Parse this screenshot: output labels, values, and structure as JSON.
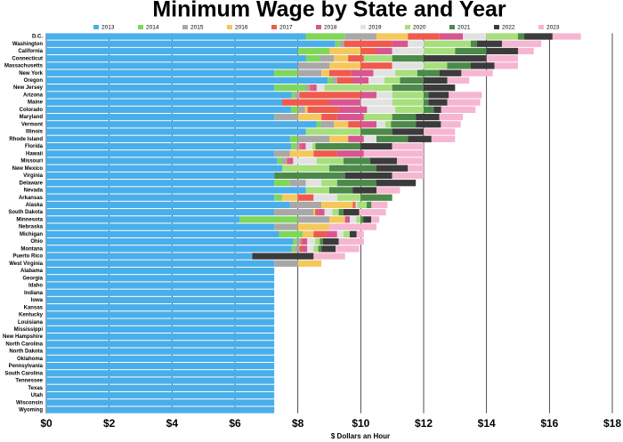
{
  "chart_data": {
    "type": "bar",
    "orientation": "horizontal",
    "stacked": true,
    "title": "Minimum Wage by State and Year",
    "x_label": "$ Dollars an Hour",
    "xlim": [
      0,
      18
    ],
    "xticks": [
      {
        "value": 0,
        "label": "$0"
      },
      {
        "value": 2,
        "label": "$2"
      },
      {
        "value": 4,
        "label": "$4"
      },
      {
        "value": 6,
        "label": "$6"
      },
      {
        "value": 8,
        "label": "$8"
      },
      {
        "value": 10,
        "label": "$10"
      },
      {
        "value": 12,
        "label": "$12"
      },
      {
        "value": 14,
        "label": "$14"
      },
      {
        "value": 16,
        "label": "$16"
      },
      {
        "value": 18,
        "label": "$18"
      }
    ],
    "grid": true,
    "legend": "top",
    "categories": [
      "D.C.",
      "Washington",
      "California",
      "Connecticut",
      "Massachusetts",
      "New York",
      "Oregon",
      "New Jersey",
      "Arizona",
      "Maine",
      "Colorado",
      "Maryland",
      "Vermont",
      "Illinois",
      "Rhode Island",
      "Florida",
      "Hawaii",
      "Missouri",
      "New Mexico",
      "Virginia",
      "Delaware",
      "Nevada",
      "Arkansas",
      "Alaska",
      "South Dakota",
      "Minnesota",
      "Nebraska",
      "Michigan",
      "Ohio",
      "Montana",
      "Puerto Rico",
      "West Virginia",
      "Alabama",
      "Georgia",
      "Idaho",
      "Indiana",
      "Iowa",
      "Kansas",
      "Kentucky",
      "Louisiana",
      "Mississippi",
      "New Hampshire",
      "North Carolina",
      "North Dakota",
      "Oklahoma",
      "Pennsylvania",
      "South Carolina",
      "Tennessee",
      "Texas",
      "Utah",
      "Wisconsin",
      "Wyoming"
    ],
    "series": [
      {
        "name": "2013",
        "color": "#4aaeea",
        "values": [
          8.25,
          9.19,
          8,
          8.25,
          8,
          7.25,
          8.95,
          7.25,
          7.8,
          7.5,
          7.78,
          7.25,
          8.6,
          8.25,
          7.75,
          7.79,
          7.25,
          7.35,
          7.5,
          7.25,
          7.25,
          8.25,
          7.25,
          7.75,
          7.25,
          6.15,
          7.25,
          7.4,
          7.85,
          7.8,
          6.55,
          7.25,
          7.25,
          7.25,
          7.25,
          7.25,
          7.25,
          7.25,
          7.25,
          7.25,
          7.25,
          7.25,
          7.25,
          7.25,
          7.25,
          7.25,
          7.25,
          7.25,
          7.25,
          7.25,
          7.25,
          7.25
        ]
      },
      {
        "name": "2014",
        "color": "#7fd65a",
        "values": [
          1.25,
          0.13,
          1,
          0.45,
          0,
          0.75,
          0.15,
          1,
          0.1,
          0,
          0.22,
          0,
          0.13,
          0,
          0.25,
          0.14,
          0,
          0.15,
          0,
          0,
          0.5,
          0,
          0.25,
          0,
          0,
          1.85,
          0,
          0.75,
          0.1,
          0.1,
          0,
          0,
          0,
          0,
          0,
          0,
          0,
          0,
          0,
          0,
          0,
          0,
          0,
          0,
          0,
          0,
          0,
          0,
          0,
          0,
          0,
          0
        ]
      },
      {
        "name": "2015",
        "color": "#a8a8a8",
        "values": [
          1,
          0.15,
          0,
          0.45,
          1,
          0.75,
          0.15,
          0.13,
          0.15,
          0,
          0.23,
          0.75,
          0.42,
          0,
          1,
          0.12,
          0.5,
          0.15,
          0,
          0,
          0.5,
          0,
          0,
          1,
          1.25,
          1,
          0.75,
          0,
          0.15,
          0.15,
          0,
          0.75,
          0,
          0,
          0,
          0,
          0,
          0,
          0,
          0,
          0,
          0,
          0,
          0,
          0,
          0,
          0,
          0,
          0,
          0,
          0,
          0
        ]
      },
      {
        "name": "2016",
        "color": "#f4c85c",
        "values": [
          1,
          0,
          1,
          0.45,
          1,
          0.25,
          0,
          0,
          0,
          0,
          0.08,
          0.75,
          0.45,
          0,
          0.6,
          0,
          0.75,
          0,
          0,
          0,
          0,
          0,
          0.5,
          1,
          0.05,
          0.5,
          1,
          0.35,
          0,
          0,
          0,
          0.75,
          0,
          0,
          0,
          0,
          0,
          0,
          0,
          0,
          0,
          0,
          0,
          0,
          0,
          0,
          0,
          0,
          0,
          0,
          0,
          0
        ]
      },
      {
        "name": "2017",
        "color": "#ef5a4c",
        "values": [
          1,
          1.53,
          0.5,
          0.5,
          1,
          0.7,
          0.5,
          0.06,
          1.95,
          1.5,
          0.99,
          0.5,
          0.4,
          0,
          0,
          0.05,
          0.75,
          0.05,
          0,
          0,
          0,
          0,
          0.5,
          0.05,
          0.1,
          0,
          0,
          0.4,
          0.05,
          0.1,
          0,
          0,
          0,
          0,
          0,
          0,
          0,
          0,
          0,
          0,
          0,
          0,
          0,
          0,
          0,
          0,
          0,
          0,
          0,
          0,
          0,
          0
        ]
      },
      {
        "name": "2018",
        "color": "#d8568f",
        "values": [
          0.75,
          0.5,
          0.5,
          0,
          0,
          0.7,
          0.5,
          0.16,
          0.5,
          1,
          0.9,
          0.85,
          0.5,
          0,
          0.5,
          0.15,
          0.85,
          0.15,
          0,
          0,
          0,
          0,
          0,
          0.04,
          0.2,
          0.15,
          0,
          0.35,
          0.15,
          0.15,
          0,
          0,
          0,
          0,
          0,
          0,
          0,
          0,
          0,
          0,
          0,
          0,
          0,
          0,
          0,
          0,
          0,
          0,
          0,
          0,
          0,
          0
        ]
      },
      {
        "name": "2019",
        "color": "#e2e2e2",
        "values": [
          0.75,
          0.5,
          1,
          0,
          1,
          0.7,
          0.5,
          0.25,
          0.5,
          1,
          0.9,
          0,
          0.28,
          0,
          0.4,
          0.21,
          0,
          0.75,
          0,
          0,
          0.5,
          0,
          0.75,
          0.05,
          0.25,
          0.21,
          0,
          0.2,
          0.25,
          0.2,
          0,
          0,
          0,
          0,
          0,
          0,
          0,
          0,
          0,
          0,
          0,
          0,
          0,
          0,
          0,
          0,
          0,
          0,
          0,
          0,
          0,
          0
        ]
      },
      {
        "name": "2020",
        "color": "#a6df7c",
        "values": [
          1,
          1.5,
          1,
          0.9,
          0.75,
          0.7,
          0.5,
          2.15,
          1,
          1,
          0.9,
          0.9,
          0.18,
          1.75,
          0,
          0.1,
          0,
          0.85,
          1.5,
          0,
          0.5,
          0.75,
          0.75,
          0.3,
          0.2,
          0.14,
          0,
          0.2,
          0.15,
          0.15,
          0,
          0,
          0,
          0,
          0,
          0,
          0,
          0,
          0,
          0,
          0,
          0,
          0,
          0,
          0,
          0,
          0,
          0,
          0,
          0,
          0,
          0
        ]
      },
      {
        "name": "2021",
        "color": "#4b8a48",
        "values": [
          0.2,
          0.19,
          1,
          1,
          0.75,
          0.7,
          0.75,
          1,
          0.15,
          0.15,
          0.32,
          0.75,
          0.79,
          1,
          1,
          1.44,
          0,
          0.85,
          1.5,
          2.25,
          1.25,
          0.75,
          1,
          0.15,
          0.15,
          0.08,
          0,
          0,
          0.1,
          0.1,
          0,
          0,
          0,
          0,
          0,
          0,
          0,
          0,
          0,
          0,
          0,
          0,
          0,
          0,
          0,
          0,
          0,
          0,
          0,
          0,
          0,
          0
        ]
      },
      {
        "name": "2022",
        "color": "#3b3b3b",
        "values": [
          0.9,
          0.8,
          1,
          2,
          0.75,
          0.7,
          0.75,
          1,
          0.65,
          0.6,
          0.24,
          0.75,
          0.8,
          1,
          0.75,
          1,
          0,
          0.85,
          1,
          1.5,
          1.25,
          0.75,
          0,
          0,
          0.5,
          0.25,
          0,
          0.22,
          0.5,
          0.45,
          1.95,
          0,
          0,
          0,
          0,
          0,
          0,
          0,
          0,
          0,
          0,
          0,
          0,
          0,
          0,
          0,
          0,
          0,
          0,
          0,
          0,
          0
        ]
      },
      {
        "name": "2023",
        "color": "#f6b6d1",
        "values": [
          0.9,
          1.25,
          0.5,
          1,
          0.75,
          1,
          0.7,
          0,
          1.05,
          1.05,
          1.09,
          0.75,
          0.63,
          1,
          0.75,
          1,
          1.9,
          0.85,
          0.5,
          1,
          0,
          0.75,
          0,
          0.51,
          0.85,
          0.26,
          1.5,
          0.23,
          0.8,
          0.75,
          1,
          0,
          0,
          0,
          0,
          0,
          0,
          0,
          0,
          0,
          0,
          0,
          0,
          0,
          0,
          0,
          0,
          0,
          0,
          0,
          0,
          0
        ]
      }
    ]
  }
}
